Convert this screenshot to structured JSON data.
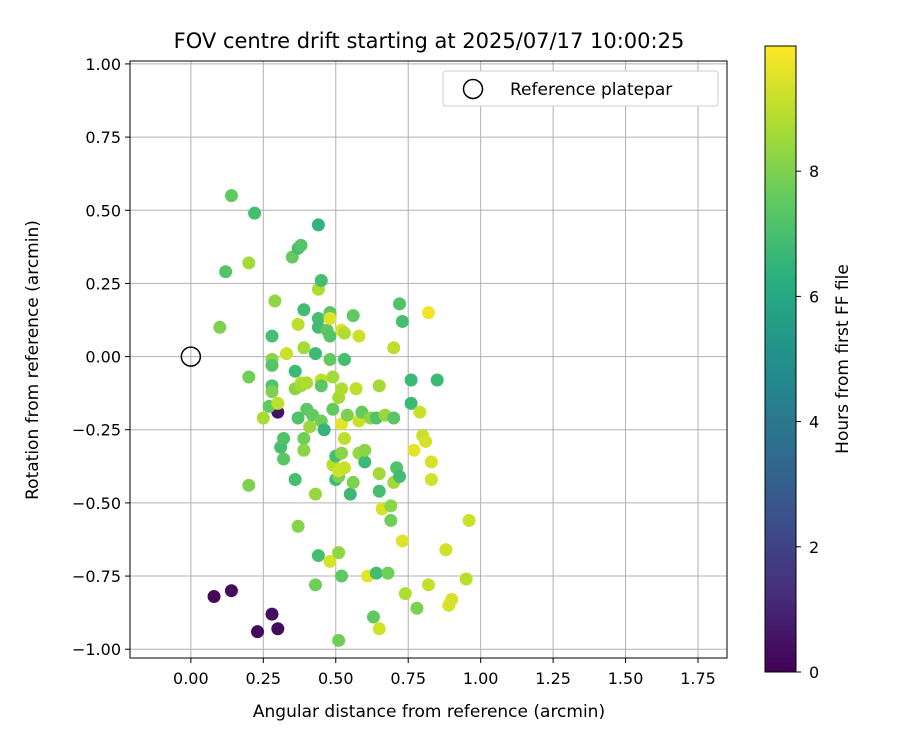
{
  "chart_data": {
    "type": "scatter",
    "title": "FOV centre drift starting at 2025/07/17 10:00:25",
    "xlabel": "Angular distance from reference (arcmin)",
    "ylabel": "Rotation from reference (arcmin)",
    "xlim": [
      -0.21,
      1.85
    ],
    "ylim": [
      -1.03,
      1.01
    ],
    "xticks": [
      "0.00",
      "0.25",
      "0.50",
      "0.75",
      "1.00",
      "1.25",
      "1.50",
      "1.75"
    ],
    "xtick_values": [
      0,
      0.25,
      0.5,
      0.75,
      1.0,
      1.25,
      1.5,
      1.75
    ],
    "yticks": [
      "1.00",
      "0.75",
      "0.50",
      "0.25",
      "0.00",
      "−0.25",
      "−0.50",
      "−0.75",
      "−1.00"
    ],
    "ytick_values": [
      1.0,
      0.75,
      0.5,
      0.25,
      0,
      -0.25,
      -0.5,
      -0.75,
      -1.0
    ],
    "grid": true,
    "legend": {
      "location": "top-right",
      "label": "Reference platepar",
      "marker": "open-circle"
    },
    "reference_point": {
      "x": 0.0,
      "y": 0.0
    },
    "colorbar": {
      "label": "Hours from first FF file",
      "ticks": [
        "0",
        "2",
        "4",
        "6",
        "8"
      ],
      "tick_values": [
        0,
        2,
        4,
        6,
        8
      ],
      "range": [
        0,
        10
      ],
      "colormap": "viridis"
    },
    "points": [
      {
        "x": 0.08,
        "y": -0.82,
        "c": 0.2
      },
      {
        "x": 0.14,
        "y": -0.8,
        "c": 0.3
      },
      {
        "x": 0.23,
        "y": -0.94,
        "c": 0.2
      },
      {
        "x": 0.28,
        "y": -0.88,
        "c": 0.4
      },
      {
        "x": 0.3,
        "y": -0.93,
        "c": 0.3
      },
      {
        "x": 0.3,
        "y": -0.19,
        "c": 0.5
      },
      {
        "x": 0.14,
        "y": 0.55,
        "c": 7.5
      },
      {
        "x": 0.22,
        "y": 0.49,
        "c": 7.0
      },
      {
        "x": 0.12,
        "y": 0.29,
        "c": 7.3
      },
      {
        "x": 0.2,
        "y": 0.32,
        "c": 8.6
      },
      {
        "x": 0.1,
        "y": 0.1,
        "c": 8.0
      },
      {
        "x": 0.2,
        "y": -0.07,
        "c": 7.8
      },
      {
        "x": 0.2,
        "y": -0.44,
        "c": 8.0
      },
      {
        "x": 0.25,
        "y": -0.21,
        "c": 8.7
      },
      {
        "x": 0.27,
        "y": -0.17,
        "c": 7.5
      },
      {
        "x": 0.28,
        "y": 0.07,
        "c": 7.0
      },
      {
        "x": 0.28,
        "y": -0.01,
        "c": 8.2
      },
      {
        "x": 0.28,
        "y": -0.03,
        "c": 7.3
      },
      {
        "x": 0.28,
        "y": -0.1,
        "c": 7.2
      },
      {
        "x": 0.28,
        "y": -0.12,
        "c": 8.0
      },
      {
        "x": 0.29,
        "y": 0.19,
        "c": 8.3
      },
      {
        "x": 0.3,
        "y": -0.16,
        "c": 9.0
      },
      {
        "x": 0.31,
        "y": -0.31,
        "c": 7.0
      },
      {
        "x": 0.32,
        "y": -0.28,
        "c": 7.2
      },
      {
        "x": 0.32,
        "y": -0.35,
        "c": 7.4
      },
      {
        "x": 0.33,
        "y": 0.01,
        "c": 9.2
      },
      {
        "x": 0.35,
        "y": 0.34,
        "c": 7.6
      },
      {
        "x": 0.36,
        "y": -0.05,
        "c": 6.8
      },
      {
        "x": 0.36,
        "y": -0.11,
        "c": 8.2
      },
      {
        "x": 0.36,
        "y": -0.42,
        "c": 7.0
      },
      {
        "x": 0.37,
        "y": 0.37,
        "c": 7.0
      },
      {
        "x": 0.38,
        "y": 0.38,
        "c": 7.3
      },
      {
        "x": 0.37,
        "y": -0.21,
        "c": 7.2
      },
      {
        "x": 0.37,
        "y": -0.58,
        "c": 8.1
      },
      {
        "x": 0.37,
        "y": 0.11,
        "c": 9.0
      },
      {
        "x": 0.38,
        "y": -0.09,
        "c": 9.0
      },
      {
        "x": 0.38,
        "y": -0.1,
        "c": 8.6
      },
      {
        "x": 0.39,
        "y": 0.16,
        "c": 6.9
      },
      {
        "x": 0.39,
        "y": 0.03,
        "c": 8.6
      },
      {
        "x": 0.39,
        "y": -0.28,
        "c": 7.8
      },
      {
        "x": 0.39,
        "y": -0.32,
        "c": 8.2
      },
      {
        "x": 0.4,
        "y": -0.09,
        "c": 8.8
      },
      {
        "x": 0.4,
        "y": -0.18,
        "c": 7.4
      },
      {
        "x": 0.41,
        "y": -0.24,
        "c": 8.5
      },
      {
        "x": 0.42,
        "y": -0.2,
        "c": 7.6
      },
      {
        "x": 0.43,
        "y": -0.47,
        "c": 8.4
      },
      {
        "x": 0.43,
        "y": -0.78,
        "c": 7.8
      },
      {
        "x": 0.43,
        "y": 0.01,
        "c": 6.8
      },
      {
        "x": 0.44,
        "y": 0.45,
        "c": 6.5
      },
      {
        "x": 0.44,
        "y": 0.23,
        "c": 8.8
      },
      {
        "x": 0.44,
        "y": 0.13,
        "c": 7.0
      },
      {
        "x": 0.44,
        "y": 0.1,
        "c": 6.9
      },
      {
        "x": 0.44,
        "y": -0.68,
        "c": 7.0
      },
      {
        "x": 0.45,
        "y": 0.26,
        "c": 7.0
      },
      {
        "x": 0.45,
        "y": -0.08,
        "c": 9.0
      },
      {
        "x": 0.45,
        "y": -0.1,
        "c": 7.4
      },
      {
        "x": 0.45,
        "y": -0.22,
        "c": 7.8
      },
      {
        "x": 0.46,
        "y": -0.25,
        "c": 6.6
      },
      {
        "x": 0.47,
        "y": 0.09,
        "c": 7.5
      },
      {
        "x": 0.48,
        "y": 0.15,
        "c": 7.3
      },
      {
        "x": 0.48,
        "y": 0.14,
        "c": 7.6
      },
      {
        "x": 0.48,
        "y": 0.13,
        "c": 9.5
      },
      {
        "x": 0.48,
        "y": 0.07,
        "c": 7.3
      },
      {
        "x": 0.48,
        "y": -0.01,
        "c": 7.6
      },
      {
        "x": 0.48,
        "y": -0.7,
        "c": 9.4
      },
      {
        "x": 0.49,
        "y": -0.07,
        "c": 8.6
      },
      {
        "x": 0.49,
        "y": -0.18,
        "c": 7.6
      },
      {
        "x": 0.49,
        "y": -0.37,
        "c": 8.9
      },
      {
        "x": 0.5,
        "y": -0.42,
        "c": 6.8
      },
      {
        "x": 0.5,
        "y": -0.34,
        "c": 7.0
      },
      {
        "x": 0.51,
        "y": -0.67,
        "c": 8.3
      },
      {
        "x": 0.51,
        "y": -0.41,
        "c": 8.0
      },
      {
        "x": 0.51,
        "y": -0.39,
        "c": 9.3
      },
      {
        "x": 0.51,
        "y": -0.14,
        "c": 8.6
      },
      {
        "x": 0.51,
        "y": -0.97,
        "c": 7.8
      },
      {
        "x": 0.52,
        "y": 0.09,
        "c": 9.5
      },
      {
        "x": 0.52,
        "y": -0.11,
        "c": 8.8
      },
      {
        "x": 0.52,
        "y": -0.23,
        "c": 9.6
      },
      {
        "x": 0.52,
        "y": -0.33,
        "c": 8.2
      },
      {
        "x": 0.52,
        "y": -0.75,
        "c": 7.5
      },
      {
        "x": 0.53,
        "y": 0.08,
        "c": 8.8
      },
      {
        "x": 0.53,
        "y": -0.01,
        "c": 7.0
      },
      {
        "x": 0.53,
        "y": -0.28,
        "c": 9.0
      },
      {
        "x": 0.53,
        "y": -0.38,
        "c": 9.2
      },
      {
        "x": 0.54,
        "y": -0.2,
        "c": 8.0
      },
      {
        "x": 0.55,
        "y": -0.47,
        "c": 6.8
      },
      {
        "x": 0.56,
        "y": 0.14,
        "c": 7.5
      },
      {
        "x": 0.56,
        "y": -0.43,
        "c": 8.0
      },
      {
        "x": 0.57,
        "y": -0.11,
        "c": 9.0
      },
      {
        "x": 0.58,
        "y": -0.22,
        "c": 9.2
      },
      {
        "x": 0.58,
        "y": -0.33,
        "c": 8.4
      },
      {
        "x": 0.58,
        "y": 0.07,
        "c": 9.2
      },
      {
        "x": 0.59,
        "y": -0.19,
        "c": 7.6
      },
      {
        "x": 0.6,
        "y": -0.36,
        "c": 6.8
      },
      {
        "x": 0.6,
        "y": -0.32,
        "c": 8.2
      },
      {
        "x": 0.61,
        "y": -0.75,
        "c": 9.6
      },
      {
        "x": 0.62,
        "y": -0.21,
        "c": 8.3
      },
      {
        "x": 0.63,
        "y": -0.89,
        "c": 7.5
      },
      {
        "x": 0.64,
        "y": -0.74,
        "c": 6.9
      },
      {
        "x": 0.64,
        "y": -0.21,
        "c": 7.2
      },
      {
        "x": 0.65,
        "y": -0.46,
        "c": 7.0
      },
      {
        "x": 0.65,
        "y": -0.4,
        "c": 8.6
      },
      {
        "x": 0.65,
        "y": -0.1,
        "c": 8.6
      },
      {
        "x": 0.65,
        "y": -0.93,
        "c": 9.3
      },
      {
        "x": 0.66,
        "y": -0.52,
        "c": 9.4
      },
      {
        "x": 0.67,
        "y": -0.2,
        "c": 8.4
      },
      {
        "x": 0.68,
        "y": -0.74,
        "c": 7.8
      },
      {
        "x": 0.69,
        "y": -0.56,
        "c": 7.8
      },
      {
        "x": 0.69,
        "y": -0.51,
        "c": 8.2
      },
      {
        "x": 0.7,
        "y": 0.03,
        "c": 9.0
      },
      {
        "x": 0.7,
        "y": -0.21,
        "c": 7.4
      },
      {
        "x": 0.7,
        "y": -0.43,
        "c": 8.6
      },
      {
        "x": 0.71,
        "y": -0.38,
        "c": 7.2
      },
      {
        "x": 0.72,
        "y": 0.18,
        "c": 7.2
      },
      {
        "x": 0.72,
        "y": -0.41,
        "c": 6.9
      },
      {
        "x": 0.73,
        "y": 0.12,
        "c": 7.0
      },
      {
        "x": 0.73,
        "y": -0.63,
        "c": 9.5
      },
      {
        "x": 0.74,
        "y": -0.81,
        "c": 8.8
      },
      {
        "x": 0.76,
        "y": -0.08,
        "c": 6.8
      },
      {
        "x": 0.76,
        "y": -0.16,
        "c": 6.8
      },
      {
        "x": 0.77,
        "y": -0.32,
        "c": 9.6
      },
      {
        "x": 0.78,
        "y": -0.86,
        "c": 8.0
      },
      {
        "x": 0.79,
        "y": -0.19,
        "c": 9.2
      },
      {
        "x": 0.8,
        "y": -0.27,
        "c": 9.2
      },
      {
        "x": 0.81,
        "y": -0.29,
        "c": 9.4
      },
      {
        "x": 0.82,
        "y": 0.15,
        "c": 9.8
      },
      {
        "x": 0.82,
        "y": -0.78,
        "c": 9.1
      },
      {
        "x": 0.83,
        "y": -0.36,
        "c": 9.4
      },
      {
        "x": 0.83,
        "y": -0.42,
        "c": 9.3
      },
      {
        "x": 0.85,
        "y": -0.08,
        "c": 6.8
      },
      {
        "x": 0.88,
        "y": -0.66,
        "c": 9.3
      },
      {
        "x": 0.89,
        "y": -0.85,
        "c": 9.4
      },
      {
        "x": 0.9,
        "y": -0.83,
        "c": 9.4
      },
      {
        "x": 0.95,
        "y": -0.76,
        "c": 8.9
      },
      {
        "x": 0.96,
        "y": -0.56,
        "c": 9.2
      }
    ]
  }
}
